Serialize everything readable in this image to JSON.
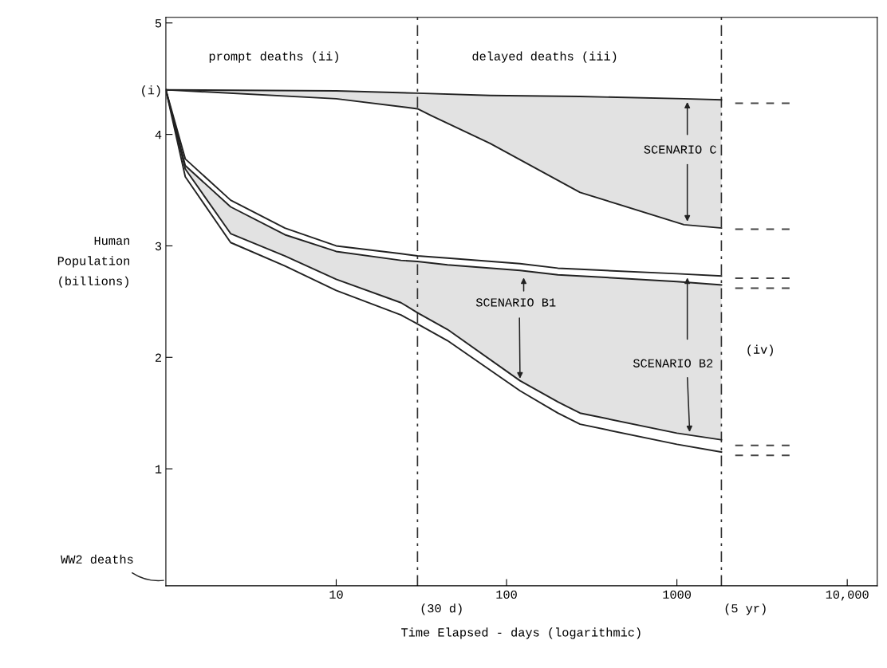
{
  "chart_data": {
    "type": "line",
    "xlabel": "Time Elapsed - days (logarithmic)",
    "ylabel": "Human Population (billions)",
    "log": "x",
    "xlim": [
      1,
      15000
    ],
    "ylim": [
      -0.05,
      5.05
    ],
    "xticks": [
      10,
      100,
      1000,
      {
        "value": 10000,
        "label": "10,000"
      }
    ],
    "yticks": [
      1,
      2,
      3,
      4,
      {
        "value": 4.4,
        "label": "(i)"
      },
      5
    ],
    "grid": false,
    "legend": false,
    "marker": "none",
    "ref_lines": [
      {
        "axis": "x",
        "value": 30,
        "label": "(30 d)",
        "line_style": "dashdot",
        "color": "#333333"
      },
      {
        "axis": "x",
        "value": 1825,
        "label": "(5 yr)",
        "line_style": "dashdot",
        "color": "#333333"
      }
    ],
    "series": [
      {
        "color": "#222222",
        "x": [
          1,
          10,
          30,
          80,
          270,
          1100,
          1825
        ],
        "values": [
          4.4,
          4.39,
          4.37,
          4.35,
          4.34,
          4.32,
          4.31
        ]
      },
      {
        "color": "#222222",
        "x": [
          1,
          10,
          30,
          36,
          80,
          270,
          1100,
          1825
        ],
        "values": [
          4.4,
          4.32,
          4.23,
          4.17,
          3.92,
          3.48,
          3.19,
          3.16
        ],
        "lower": [
          4.4,
          4.32,
          4.23,
          4.17,
          3.92,
          3.48,
          3.19,
          3.16
        ],
        "upper": [
          4.4,
          4.39,
          4.37,
          4.37,
          4.35,
          4.34,
          4.32,
          4.31
        ]
      },
      {
        "color": "#222222",
        "x": [
          1,
          1.3,
          2.4,
          5,
          10,
          24,
          30,
          45,
          120,
          200,
          270,
          1000,
          1825
        ],
        "values": [
          4.4,
          3.78,
          3.41,
          3.16,
          3.0,
          2.93,
          2.91,
          2.89,
          2.84,
          2.8,
          2.79,
          2.75,
          2.73
        ]
      },
      {
        "color": "#222222",
        "x": [
          1,
          1.3,
          2.4,
          5,
          10,
          24,
          30,
          45,
          120,
          200,
          270,
          1000,
          1825
        ],
        "values": [
          4.4,
          3.72,
          3.35,
          3.1,
          2.95,
          2.87,
          2.86,
          2.83,
          2.78,
          2.74,
          2.73,
          2.68,
          2.65
        ],
        "lower": [
          4.4,
          3.69,
          3.11,
          2.91,
          2.7,
          2.49,
          2.4,
          2.25,
          1.79,
          1.6,
          1.5,
          1.32,
          1.26
        ],
        "upper": [
          4.4,
          3.72,
          3.35,
          3.1,
          2.95,
          2.87,
          2.86,
          2.83,
          2.78,
          2.74,
          2.73,
          2.68,
          2.65
        ]
      },
      {
        "color": "#222222",
        "x": [
          1,
          1.3,
          2.4,
          5,
          10,
          24,
          30,
          45,
          120,
          200,
          270,
          1000,
          1825
        ],
        "values": [
          4.4,
          3.69,
          3.11,
          2.91,
          2.7,
          2.49,
          2.4,
          2.25,
          1.79,
          1.6,
          1.5,
          1.32,
          1.26
        ]
      },
      {
        "color": "#222222",
        "x": [
          1,
          1.3,
          2.4,
          5,
          10,
          24,
          30,
          45,
          120,
          200,
          270,
          1000,
          1825
        ],
        "values": [
          4.4,
          3.62,
          3.03,
          2.82,
          2.6,
          2.38,
          2.3,
          2.15,
          1.7,
          1.5,
          1.4,
          1.22,
          1.15
        ]
      },
      {
        "color": "#444444",
        "line_style": "dashed",
        "x": [
          2200,
          4700
        ],
        "values": [
          4.28,
          4.28
        ]
      },
      {
        "color": "#444444",
        "line_style": "dashed",
        "x": [
          2200,
          4700
        ],
        "values": [
          3.15,
          3.15
        ]
      },
      {
        "color": "#444444",
        "line_style": "dashed",
        "x": [
          2200,
          4700
        ],
        "values": [
          2.71,
          2.71
        ]
      },
      {
        "color": "#444444",
        "line_style": "dashed",
        "x": [
          2200,
          4700
        ],
        "values": [
          2.62,
          2.62
        ]
      },
      {
        "color": "#444444",
        "line_style": "dashed",
        "x": [
          2200,
          4700
        ],
        "values": [
          1.21,
          1.21
        ]
      },
      {
        "color": "#444444",
        "line_style": "dashed",
        "x": [
          2200,
          4700
        ],
        "values": [
          1.12,
          1.12
        ]
      }
    ],
    "annotations": [
      "prompt deaths (ii)",
      "delayed deaths (iii)",
      "(iv)",
      "SCENARIO C",
      {
        "text": "SCENARIO B1",
        "x": 120,
        "y": 1.79
      },
      {
        "text": "SCENARIO B2",
        "x": 1190,
        "y": 1.31
      },
      "WW2 deaths"
    ]
  }
}
